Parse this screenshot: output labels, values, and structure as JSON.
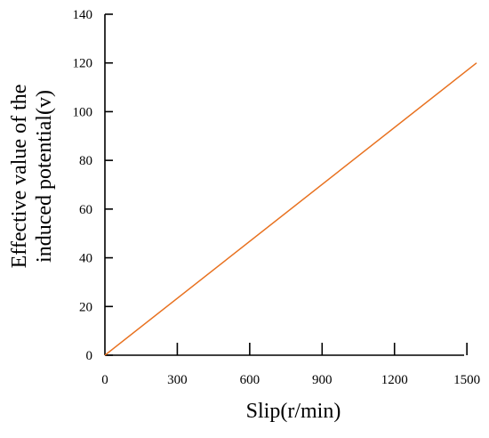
{
  "chart_data": {
    "type": "line",
    "title": "",
    "xlabel": "Slip(r/min)",
    "ylabel_lines": [
      "Effective value of the",
      "induced potential(v)"
    ],
    "xlim": [
      0,
      1540
    ],
    "ylim": [
      0,
      140
    ],
    "xticks": [
      0,
      300,
      600,
      900,
      1200,
      1500
    ],
    "yticks": [
      0,
      20,
      40,
      60,
      80,
      100,
      120,
      140
    ],
    "grid": false,
    "legend": "none",
    "series": [
      {
        "x": [
          0,
          1540
        ],
        "y": [
          0,
          120
        ],
        "color": "#E8711F"
      }
    ]
  }
}
